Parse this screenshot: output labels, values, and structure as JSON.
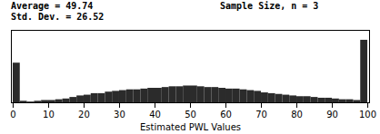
{
  "chart_data": {
    "type": "histogram",
    "annotations": [
      "Average = 49.74\nStd. Dev. = 26.52",
      "Sample Size, n = 3"
    ],
    "x_label": "Estimated PWL Values",
    "color": "#2b2b2b",
    "bins": [
      0,
      2,
      4,
      6,
      8,
      10,
      12,
      14,
      16,
      18,
      20,
      22,
      24,
      26,
      28,
      30,
      32,
      34,
      36,
      38,
      40,
      42,
      44,
      46,
      48,
      50,
      52,
      54,
      56,
      58,
      60,
      62,
      64,
      66,
      68,
      70,
      72,
      74,
      76,
      78,
      80,
      82,
      84,
      86,
      88,
      90,
      92,
      94,
      96,
      98,
      100
    ],
    "values": [
      52,
      2,
      1,
      2,
      3,
      3,
      4,
      5,
      7,
      9,
      10,
      12,
      12,
      14,
      15,
      16,
      17,
      17,
      18,
      19,
      19,
      20,
      21,
      21,
      22,
      22,
      21,
      20,
      20,
      19,
      18,
      18,
      17,
      16,
      15,
      13,
      12,
      11,
      10,
      9,
      8,
      8,
      7,
      6,
      6,
      5,
      4,
      4,
      3,
      82
    ],
    "xlim": [
      -0.5,
      100.5
    ],
    "ylim": [
      0,
      95
    ],
    "xticks": [
      0,
      10,
      20,
      30,
      40,
      50,
      60,
      70,
      80,
      90,
      100
    ],
    "tick_labels": "x"
  }
}
